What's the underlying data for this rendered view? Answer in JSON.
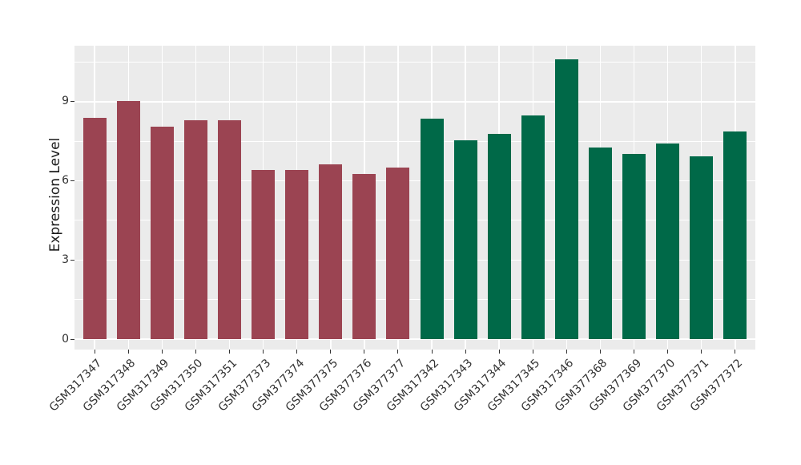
{
  "chart_data": {
    "type": "bar",
    "title": "",
    "xlabel": "",
    "ylabel": "Expression Level",
    "categories": [
      "GSM317347",
      "GSM317348",
      "GSM317349",
      "GSM317350",
      "GSM317351",
      "GSM377373",
      "GSM377374",
      "GSM377375",
      "GSM377376",
      "GSM377377",
      "GSM317342",
      "GSM317343",
      "GSM317344",
      "GSM317345",
      "GSM317346",
      "GSM377368",
      "GSM377369",
      "GSM377370",
      "GSM377371",
      "GSM377372"
    ],
    "values": [
      8.39,
      9.03,
      8.04,
      8.31,
      8.31,
      6.41,
      6.41,
      6.62,
      6.26,
      6.5,
      8.37,
      7.53,
      7.79,
      8.48,
      10.6,
      7.25,
      7.01,
      7.41,
      6.94,
      7.87
    ],
    "bar_groups": [
      "maroon",
      "maroon",
      "maroon",
      "maroon",
      "maroon",
      "maroon",
      "maroon",
      "maroon",
      "maroon",
      "maroon",
      "green",
      "green",
      "green",
      "green",
      "green",
      "green",
      "green",
      "green",
      "green",
      "green"
    ],
    "group_colors": {
      "maroon": "#9B4452",
      "green": "#006948"
    },
    "yticks": [
      0,
      3,
      6,
      9
    ],
    "yticks_minor": [
      1.5,
      4.5,
      7.5,
      10.5
    ],
    "ylim": [
      -0.4,
      11.1
    ],
    "bar_width_ratio": 0.7,
    "grid": "white horizontal major+minor lines and vertical major lines on gray panel",
    "legend": "none",
    "panel_background": "#EBEBEB",
    "grid_color": "#FFFFFF",
    "axis_text_color": "#333333"
  }
}
